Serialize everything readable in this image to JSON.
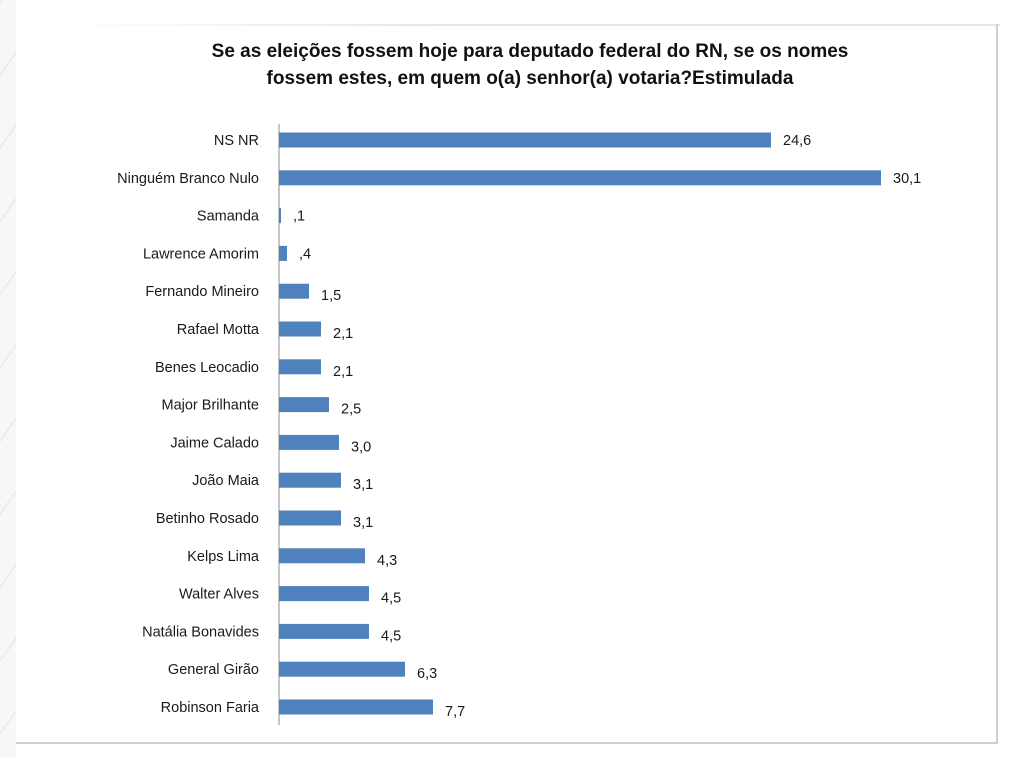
{
  "chart_data": {
    "type": "bar",
    "orientation": "horizontal",
    "title": "Se as eleições fossem hoje para deputado federal do RN, se os nomes fossem estes, em quem o(a)  senhor(a) votaria?Estimulada",
    "title_lines": [
      "Se as eleições fossem hoje para deputado federal do RN, se os nomes",
      "fossem estes, em quem o(a)  senhor(a) votaria?Estimulada"
    ],
    "categories": [
      "NS NR",
      "Ninguém Branco Nulo",
      "Samanda",
      "Lawrence Amorim",
      "Fernando Mineiro",
      "Rafael Motta",
      "Benes Leocadio",
      "Major Brilhante",
      "Jaime Calado",
      "João Maia",
      "Betinho Rosado",
      "Kelps Lima",
      "Walter Alves",
      "Natália Bonavides",
      "General Girão",
      "Robinson Faria"
    ],
    "values": [
      24.6,
      30.1,
      0.1,
      0.4,
      1.5,
      2.1,
      2.1,
      2.5,
      3.0,
      3.1,
      3.1,
      4.3,
      4.5,
      4.5,
      6.3,
      7.7
    ],
    "value_labels": [
      "24,6",
      "30,1",
      ",1",
      ",4",
      "1,5",
      "2,1",
      "2,1",
      "2,5",
      "3,0",
      "3,1",
      "3,1",
      "4,3",
      "4,5",
      "4,5",
      "6,3",
      "7,7"
    ],
    "xlim": [
      0,
      30.1
    ],
    "grid": false,
    "legend": "none",
    "bar_color": "#4f81bd"
  }
}
